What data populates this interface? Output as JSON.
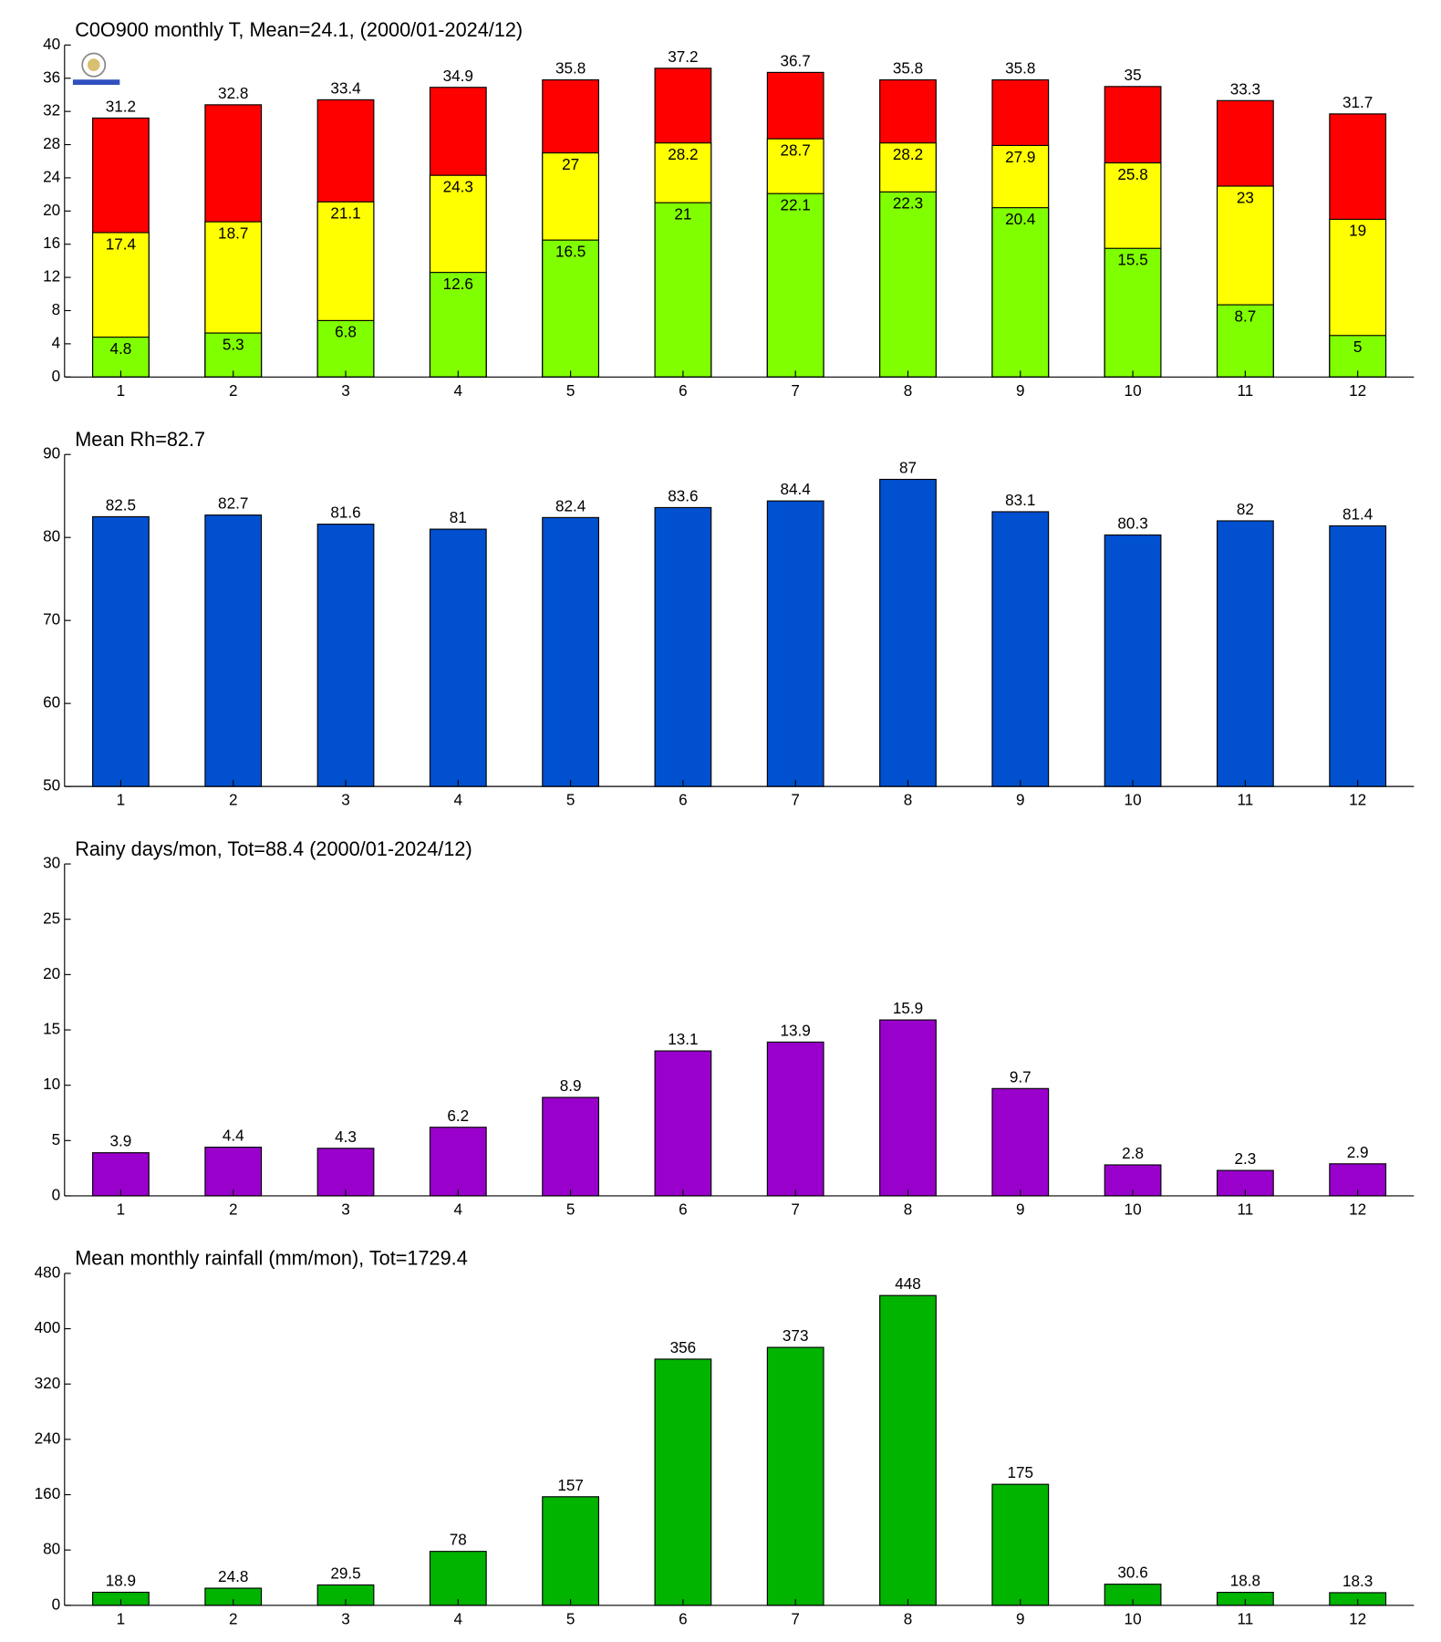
{
  "chart_data": [
    {
      "type": "overlay-bar",
      "title": "C0O900 monthly T, Mean=24.1, (2000/01-2024/12)",
      "categories": [
        "1",
        "2",
        "3",
        "4",
        "5",
        "6",
        "7",
        "8",
        "9",
        "10",
        "11",
        "12"
      ],
      "series": [
        {
          "color": "#80ff00",
          "values": [
            4.8,
            5.3,
            6.8,
            12.6,
            16.5,
            21,
            22.1,
            22.3,
            20.4,
            15.5,
            8.7,
            5
          ]
        },
        {
          "color": "#ffff00",
          "values": [
            17.4,
            18.7,
            21.1,
            24.3,
            27,
            28.2,
            28.7,
            28.2,
            27.9,
            25.8,
            23,
            19
          ]
        },
        {
          "color": "#ff0000",
          "values": [
            31.2,
            32.8,
            33.4,
            34.9,
            35.8,
            37.2,
            36.7,
            35.8,
            35.8,
            35,
            33.3,
            31.7
          ]
        }
      ],
      "ylim": [
        0,
        40
      ],
      "yticks": [
        0,
        4,
        8,
        12,
        16,
        20,
        24,
        28,
        32,
        36,
        40
      ]
    },
    {
      "type": "bar",
      "title": "Mean Rh=82.7",
      "categories": [
        "1",
        "2",
        "3",
        "4",
        "5",
        "6",
        "7",
        "8",
        "9",
        "10",
        "11",
        "12"
      ],
      "series": [
        {
          "color": "#0050d0",
          "values": [
            82.5,
            82.7,
            81.6,
            81,
            82.4,
            83.6,
            84.4,
            87,
            83.1,
            80.3,
            82,
            81.4
          ]
        }
      ],
      "ylim": [
        50,
        90
      ],
      "yticks": [
        50,
        60,
        70,
        80,
        90
      ]
    },
    {
      "type": "bar",
      "title": "Rainy days/mon, Tot=88.4 (2000/01-2024/12)",
      "categories": [
        "1",
        "2",
        "3",
        "4",
        "5",
        "6",
        "7",
        "8",
        "9",
        "10",
        "11",
        "12"
      ],
      "series": [
        {
          "color": "#9900cc",
          "values": [
            3.9,
            4.4,
            4.3,
            6.2,
            8.9,
            13.1,
            13.9,
            15.9,
            9.7,
            2.8,
            2.3,
            2.9
          ]
        }
      ],
      "ylim": [
        0,
        30
      ],
      "yticks": [
        0,
        5,
        10,
        15,
        20,
        25,
        30
      ]
    },
    {
      "type": "bar",
      "title": "Mean monthly rainfall (mm/mon), Tot=1729.4",
      "categories": [
        "1",
        "2",
        "3",
        "4",
        "5",
        "6",
        "7",
        "8",
        "9",
        "10",
        "11",
        "12"
      ],
      "series": [
        {
          "color": "#00b400",
          "values": [
            18.9,
            24.8,
            29.5,
            78,
            157,
            356,
            373,
            448,
            175,
            30.6,
            18.8,
            18.3
          ]
        }
      ],
      "ylim": [
        0,
        480
      ],
      "yticks": [
        0,
        80,
        160,
        240,
        320,
        400,
        480
      ]
    }
  ]
}
